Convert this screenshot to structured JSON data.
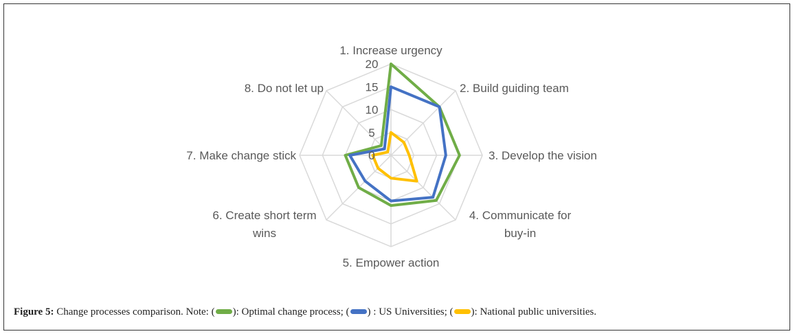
{
  "chart_data": {
    "type": "radar",
    "categories": [
      "1. Increase urgency",
      "2. Build guiding team",
      "3. Develop the vision",
      "4. Communicate for buy-in",
      "5. Empower action",
      "6. Create short term wins",
      "7. Make change stick",
      "8. Do not let up"
    ],
    "rmax": 20,
    "ticks": [
      "0",
      "5",
      "10",
      "15",
      "20"
    ],
    "series": [
      {
        "name": "Optimal change process",
        "color": "#70ad47",
        "values": [
          20,
          15,
          15,
          14,
          11,
          10,
          10,
          3
        ]
      },
      {
        "name": "US Universities",
        "color": "#4472c4",
        "values": [
          15,
          15,
          12,
          13,
          10,
          8,
          9,
          2
        ]
      },
      {
        "name": "National public universities",
        "color": "#ffc000",
        "values": [
          5,
          4,
          4,
          8,
          5,
          4,
          4,
          1
        ]
      }
    ]
  },
  "caption": {
    "label": "Figure 5:",
    "intro": "Change processes comparison. Note: (",
    "item1": "): Optimal change process; (",
    "item2": ") : US Universities; (",
    "item3": "): National public universities."
  }
}
